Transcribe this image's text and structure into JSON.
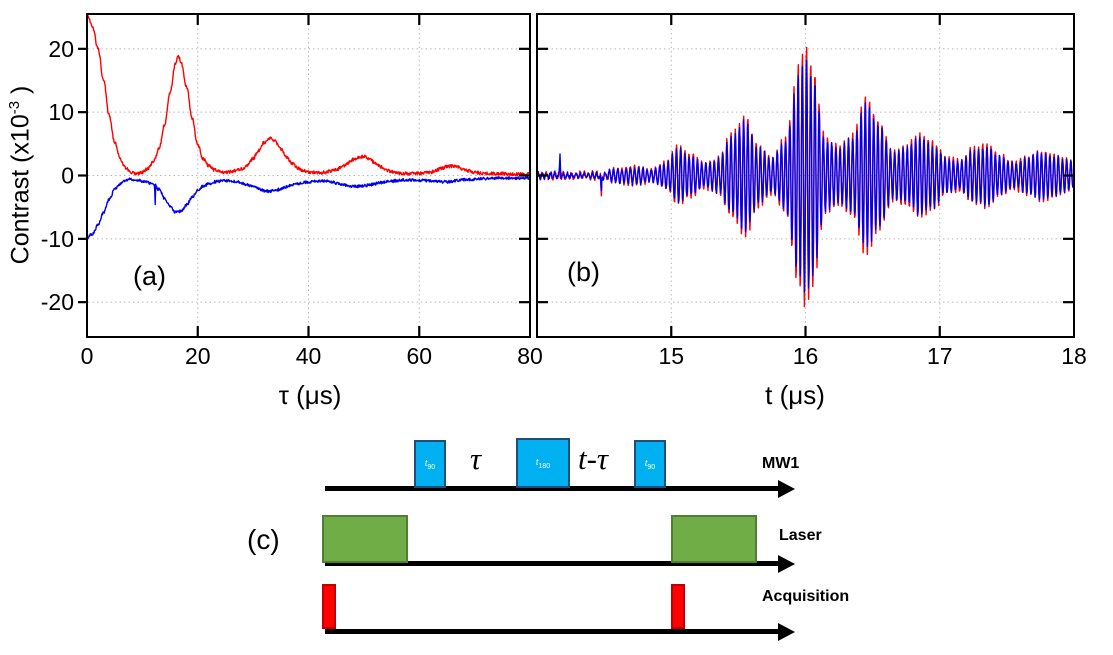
{
  "figure": {
    "background": "#ffffff"
  },
  "chart_data": [
    {
      "id": "panel-a",
      "panel_label": "(a)",
      "type": "line",
      "xlabel": "τ (μs)",
      "ylabel": "Contrast (x10⁻³ )",
      "ylabel_prefix": "Contrast (x10",
      "ylabel_sup": "-3",
      "ylabel_suffix": " )",
      "xlim": [
        0,
        80
      ],
      "ylim": [
        -25.5,
        25.5
      ],
      "xticks": [
        0,
        20,
        40,
        60,
        80
      ],
      "xtick_labels": [
        "0",
        "20",
        "40",
        "60",
        "80"
      ],
      "yticks": [
        20,
        10,
        0,
        -10,
        -20
      ],
      "ytick_labels": [
        "20",
        "10",
        "0",
        "-10",
        "-20"
      ],
      "grid": true,
      "render": "keypoints",
      "series": [
        {
          "name": "red",
          "color": "#ff0000",
          "noise": 0.25,
          "spikes": [],
          "keypoints": [
            [
              0,
              25.3
            ],
            [
              1,
              23.5
            ],
            [
              2,
              20
            ],
            [
              3,
              15
            ],
            [
              4,
              9.5
            ],
            [
              5,
              5.2
            ],
            [
              6,
              2.6
            ],
            [
              7,
              1.2
            ],
            [
              8,
              0.5
            ],
            [
              9,
              0.3
            ],
            [
              10,
              0.5
            ],
            [
              11,
              1.1
            ],
            [
              12,
              2.2
            ],
            [
              13,
              4.2
            ],
            [
              14,
              8
            ],
            [
              15,
              13
            ],
            [
              16,
              17.8
            ],
            [
              16.5,
              18.9
            ],
            [
              17,
              17.8
            ],
            [
              18,
              14
            ],
            [
              19,
              9
            ],
            [
              20,
              4.8
            ],
            [
              21,
              2.6
            ],
            [
              22,
              1.5
            ],
            [
              23,
              0.9
            ],
            [
              24,
              0.6
            ],
            [
              25,
              0.5
            ],
            [
              26,
              0.6
            ],
            [
              27,
              0.8
            ],
            [
              28,
              1.1
            ],
            [
              29,
              1.7
            ],
            [
              30,
              2.7
            ],
            [
              31,
              4
            ],
            [
              32,
              5.2
            ],
            [
              33,
              5.9
            ],
            [
              34,
              5.4
            ],
            [
              35,
              4.2
            ],
            [
              36,
              2.9
            ],
            [
              37,
              1.9
            ],
            [
              38,
              1.2
            ],
            [
              39,
              0.8
            ],
            [
              40,
              0.6
            ],
            [
              41,
              0.5
            ],
            [
              42,
              0.4
            ],
            [
              43,
              0.5
            ],
            [
              44,
              0.7
            ],
            [
              45,
              0.9
            ],
            [
              46,
              1.3
            ],
            [
              47,
              1.9
            ],
            [
              48,
              2.5
            ],
            [
              49,
              2.9
            ],
            [
              50,
              3
            ],
            [
              51,
              2.6
            ],
            [
              52,
              2
            ],
            [
              53,
              1.4
            ],
            [
              54,
              0.9
            ],
            [
              55,
              0.6
            ],
            [
              56,
              0.4
            ],
            [
              57,
              0.3
            ],
            [
              58,
              0.3
            ],
            [
              59,
              0.3
            ],
            [
              60,
              0.3
            ],
            [
              61,
              0.4
            ],
            [
              62,
              0.5
            ],
            [
              63,
              0.8
            ],
            [
              64,
              1.1
            ],
            [
              65,
              1.4
            ],
            [
              66,
              1.5
            ],
            [
              67,
              1.3
            ],
            [
              68,
              1
            ],
            [
              69,
              0.7
            ],
            [
              70,
              0.5
            ],
            [
              71,
              0.4
            ],
            [
              72,
              0.3
            ],
            [
              73,
              0.3
            ],
            [
              74,
              0.3
            ],
            [
              75,
              0.3
            ],
            [
              76,
              0.2
            ],
            [
              77,
              0.2
            ],
            [
              78,
              0.2
            ],
            [
              79,
              0.2
            ],
            [
              80,
              0.2
            ]
          ]
        },
        {
          "name": "blue",
          "color": "#0000ee",
          "noise": 0.22,
          "spikes": [
            [
              12.35,
              -4.6
            ]
          ],
          "keypoints": [
            [
              0,
              -9.8
            ],
            [
              1,
              -9.2
            ],
            [
              2,
              -7.8
            ],
            [
              3,
              -5.8
            ],
            [
              4,
              -3.8
            ],
            [
              5,
              -2.2
            ],
            [
              6,
              -1.3
            ],
            [
              7,
              -0.8
            ],
            [
              8,
              -0.6
            ],
            [
              9,
              -0.7
            ],
            [
              10,
              -0.9
            ],
            [
              11,
              -1.1
            ],
            [
              12,
              -1.4
            ],
            [
              13,
              -2.2
            ],
            [
              14,
              -3.6
            ],
            [
              15,
              -5
            ],
            [
              16,
              -5.8
            ],
            [
              17,
              -5.6
            ],
            [
              18,
              -4.6
            ],
            [
              19,
              -3.4
            ],
            [
              20,
              -2.4
            ],
            [
              21,
              -1.7
            ],
            [
              22,
              -1.3
            ],
            [
              23,
              -1
            ],
            [
              24,
              -0.9
            ],
            [
              25,
              -0.8
            ],
            [
              26,
              -0.9
            ],
            [
              27,
              -1
            ],
            [
              28,
              -1.2
            ],
            [
              29,
              -1.5
            ],
            [
              30,
              -1.8
            ],
            [
              31,
              -2.1
            ],
            [
              32,
              -2.4
            ],
            [
              33,
              -2.5
            ],
            [
              34,
              -2.4
            ],
            [
              35,
              -2.1
            ],
            [
              36,
              -1.8
            ],
            [
              37,
              -1.5
            ],
            [
              38,
              -1.3
            ],
            [
              39,
              -1.1
            ],
            [
              40,
              -1
            ],
            [
              41,
              -0.9
            ],
            [
              42,
              -0.9
            ],
            [
              43,
              -0.9
            ],
            [
              44,
              -1
            ],
            [
              45,
              -1.2
            ],
            [
              46,
              -1.4
            ],
            [
              47,
              -1.6
            ],
            [
              48,
              -1.7
            ],
            [
              49,
              -1.7
            ],
            [
              50,
              -1.6
            ],
            [
              51,
              -1.5
            ],
            [
              52,
              -1.3
            ],
            [
              53,
              -1.1
            ],
            [
              54,
              -1
            ],
            [
              55,
              -0.9
            ],
            [
              56,
              -0.8
            ],
            [
              57,
              -0.7
            ],
            [
              58,
              -0.7
            ],
            [
              59,
              -0.7
            ],
            [
              60,
              -0.8
            ],
            [
              61,
              -0.8
            ],
            [
              62,
              -0.9
            ],
            [
              63,
              -0.9
            ],
            [
              64,
              -1
            ],
            [
              65,
              -1
            ],
            [
              66,
              -0.9
            ],
            [
              67,
              -0.8
            ],
            [
              68,
              -0.7
            ],
            [
              69,
              -0.6
            ],
            [
              70,
              -0.6
            ],
            [
              71,
              -0.5
            ],
            [
              72,
              -0.5
            ],
            [
              73,
              -0.5
            ],
            [
              74,
              -0.4
            ],
            [
              75,
              -0.4
            ],
            [
              76,
              -0.4
            ],
            [
              77,
              -0.4
            ],
            [
              78,
              -0.4
            ],
            [
              79,
              -0.4
            ],
            [
              80,
              -0.4
            ]
          ]
        }
      ]
    },
    {
      "id": "panel-b",
      "panel_label": "(b)",
      "type": "line",
      "xlabel": "t (μs)",
      "xlim": [
        14,
        18
      ],
      "ylim": [
        -25.5,
        25.5
      ],
      "xticks": [
        15,
        16,
        17,
        18
      ],
      "xtick_labels": [
        "15",
        "16",
        "17",
        "18"
      ],
      "yticks": [
        20,
        10,
        0,
        -10,
        -20
      ],
      "ytick_labels": [],
      "grid": true,
      "render": "wavepacket",
      "carrier_freq_per_us": 32,
      "envelope": [
        [
          14,
          0.4
        ],
        [
          14.3,
          0.4
        ],
        [
          14.5,
          0.5
        ],
        [
          14.6,
          1.1
        ],
        [
          14.75,
          1.3
        ],
        [
          14.85,
          0.9
        ],
        [
          14.95,
          1.8
        ],
        [
          15.05,
          4.3
        ],
        [
          15.15,
          3
        ],
        [
          15.25,
          1.8
        ],
        [
          15.35,
          2.6
        ],
        [
          15.45,
          6
        ],
        [
          15.55,
          8.8
        ],
        [
          15.65,
          4.5
        ],
        [
          15.75,
          2.6
        ],
        [
          15.85,
          5.5
        ],
        [
          15.95,
          16
        ],
        [
          16,
          19
        ],
        [
          16.05,
          16
        ],
        [
          16.15,
          5.5
        ],
        [
          16.25,
          4.3
        ],
        [
          16.35,
          6
        ],
        [
          16.45,
          11.5
        ],
        [
          16.55,
          8
        ],
        [
          16.65,
          3.6
        ],
        [
          16.75,
          4.4
        ],
        [
          16.85,
          6.2
        ],
        [
          16.95,
          5
        ],
        [
          17.05,
          2.6
        ],
        [
          17.15,
          2.2
        ],
        [
          17.25,
          4
        ],
        [
          17.35,
          4.6
        ],
        [
          17.45,
          3
        ],
        [
          17.55,
          2
        ],
        [
          17.65,
          2.8
        ],
        [
          17.75,
          3.6
        ],
        [
          17.85,
          3.2
        ],
        [
          17.95,
          2.4
        ],
        [
          18,
          2
        ]
      ],
      "series": [
        {
          "name": "red",
          "color": "#ff0000",
          "amp_scale": 1.1,
          "noise": 0.3,
          "spikes": [
            [
              14.48,
              -3.2
            ]
          ]
        },
        {
          "name": "blue",
          "color": "#0000ee",
          "amp_scale": 1.0,
          "noise": 0.3,
          "spikes": [
            [
              14.17,
              3.4
            ],
            [
              14.48,
              -2.4
            ]
          ]
        }
      ]
    }
  ],
  "diagram": {
    "panel_label": "(c)",
    "mw_row": {
      "label": "MW1",
      "pulses": [
        {
          "main": "t",
          "sub": "90"
        },
        {
          "main": "t",
          "sub": "180"
        },
        {
          "main": "t",
          "sub": "90"
        }
      ],
      "gap_labels": [
        "τ",
        "t-τ"
      ]
    },
    "laser_row": {
      "label": "Laser"
    },
    "acq_row": {
      "label": "Acquisition"
    },
    "colors": {
      "mw_pulse_fill": "#00b0f0",
      "mw_pulse_border": "#1f4e79",
      "laser_fill": "#70ad47",
      "laser_border": "#507e32",
      "acq_fill": "#ff0000",
      "acq_border": "#c00000",
      "timeline": "#000000"
    }
  }
}
